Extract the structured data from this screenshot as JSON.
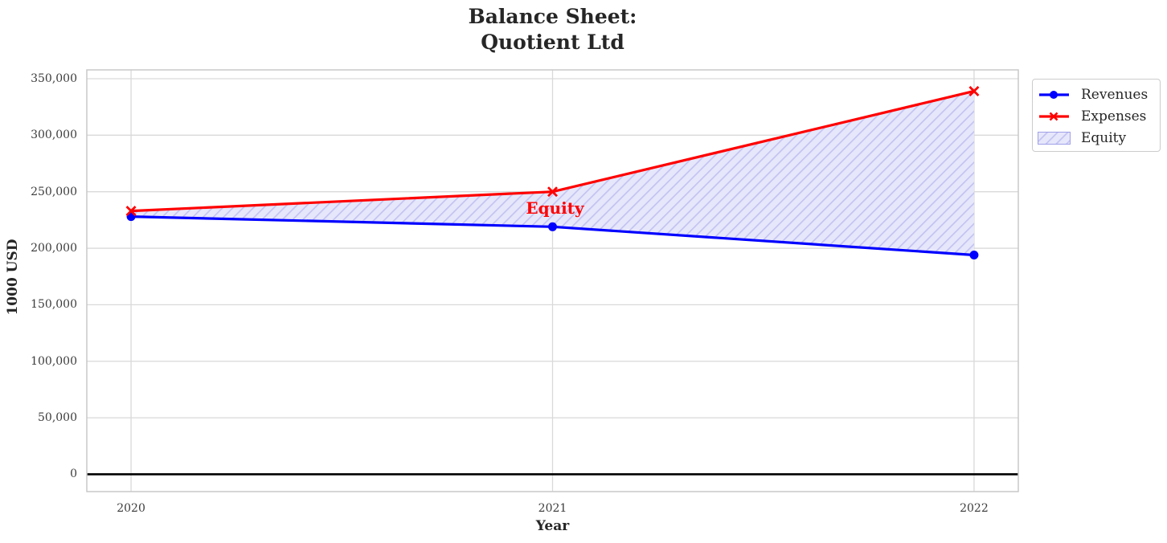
{
  "title": {
    "line1": "Balance Sheet:",
    "line2": "Quotient Ltd"
  },
  "chart_data": {
    "type": "line",
    "title": "Balance Sheet:\nQuotient Ltd",
    "xlabel": "Year",
    "ylabel": "1000 USD",
    "x": [
      2020,
      2021,
      2022
    ],
    "x_tick_labels": [
      "2020",
      "2021",
      "2022"
    ],
    "yticks": [
      0,
      50000,
      100000,
      150000,
      200000,
      250000,
      300000,
      350000
    ],
    "ytick_labels": [
      "0",
      "50,000",
      "100,000",
      "150,000",
      "200,000",
      "250,000",
      "300,000",
      "350,000"
    ],
    "xlim": [
      2019.895,
      2022.105
    ],
    "ylim": [
      -15300,
      357800
    ],
    "grid": true,
    "grid_color": "#d9d9d9",
    "spine_color": "#c9c9c9",
    "series": [
      {
        "name": "Revenues",
        "values": [
          228000,
          219000,
          194000
        ],
        "color": "#0000ff",
        "marker": "circle"
      },
      {
        "name": "Expenses",
        "values": [
          233000,
          250000,
          339000
        ],
        "color": "#ff0000",
        "marker": "x"
      }
    ],
    "fill_between": {
      "name": "Equity",
      "between": [
        "Revenues",
        "Expenses"
      ],
      "face_color": "#e7e7fb",
      "hatch_color": "#c3c3f2",
      "hatch": "///",
      "patch_border": "#a0a0e8"
    },
    "annotation": {
      "text": "Equity",
      "color": "#ff0000",
      "x": 2021,
      "y": 234900
    },
    "zero_line": {
      "value": 0,
      "color": "#000000",
      "width": 2.6
    },
    "legend": {
      "position": "upper-right-outside",
      "items": [
        {
          "label": "Revenues",
          "swatch": "line-circle",
          "color": "#0000ff"
        },
        {
          "label": "Expenses",
          "swatch": "line-x",
          "color": "#ff0000"
        },
        {
          "label": "Equity",
          "swatch": "hatch-patch",
          "color": "#c3c3f2"
        }
      ]
    }
  }
}
